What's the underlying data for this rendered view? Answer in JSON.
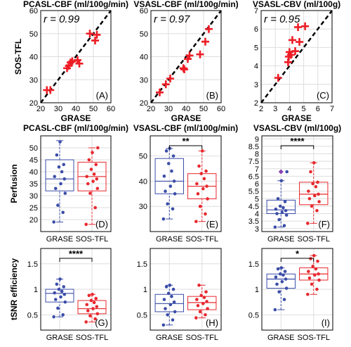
{
  "chart_data": [
    {
      "id": "A",
      "type": "scatter",
      "title": "PCASL-CBF (ml/100g/min)",
      "xlabel": "GRASE",
      "ylabel": "SOS-TFL",
      "xlim": [
        20,
        60
      ],
      "ylim": [
        20,
        60
      ],
      "xticks": [
        "20",
        "30",
        "40",
        "50",
        "60"
      ],
      "yticks": [
        "20",
        "30",
        "40",
        "50",
        "60"
      ],
      "r_label": "r = 0.99",
      "panel_label": "(A)",
      "grid": true,
      "fit_line": [
        [
          20,
          20
        ],
        [
          60,
          60
        ]
      ],
      "x": [
        23.5,
        25.5,
        35,
        36,
        37,
        38,
        41,
        42,
        48,
        51,
        52
      ],
      "y": [
        25.5,
        25.5,
        35,
        36,
        37.5,
        38,
        38.5,
        37,
        50,
        47,
        49.5
      ]
    },
    {
      "id": "B",
      "type": "scatter",
      "title": "VSASL-CBF (ml/100g/min)",
      "xlabel": "GRASE",
      "ylabel": "",
      "xlim": [
        20,
        60
      ],
      "ylim": [
        20,
        60
      ],
      "xticks": [
        "20",
        "30",
        "40",
        "50",
        "60"
      ],
      "yticks": [
        "20",
        "30",
        "40",
        "50",
        "60"
      ],
      "r_label": "r = 0.97",
      "panel_label": "(B)",
      "grid": true,
      "fit_line": [
        [
          20,
          20
        ],
        [
          60,
          60
        ]
      ],
      "x": [
        25,
        28.5,
        31,
        38.5,
        39,
        41,
        42,
        48,
        51,
        53
      ],
      "y": [
        24.5,
        28,
        30.5,
        35,
        34.5,
        39,
        40.5,
        41,
        46.5,
        52
      ]
    },
    {
      "id": "C",
      "type": "scatter",
      "title": "VSASL-CBV (ml/100g)",
      "xlabel": "GRASE",
      "ylabel": "",
      "xlim": [
        2,
        7
      ],
      "ylim": [
        2,
        7
      ],
      "xticks": [
        "2",
        "3",
        "4",
        "5",
        "6",
        "7"
      ],
      "yticks": [
        "2",
        "3",
        "4",
        "5",
        "6",
        "7"
      ],
      "r_label": "r = 0.95",
      "panel_label": "(C)",
      "grid": true,
      "fit_line": [
        [
          2,
          2
        ],
        [
          7,
          7
        ]
      ],
      "x": [
        3.2,
        3.9,
        3.95,
        4.0,
        4.1,
        4.2,
        4.4,
        4.6,
        4.7,
        5.1
      ],
      "y": [
        3.35,
        4.2,
        4.5,
        4.75,
        4.6,
        5.4,
        4.8,
        6.1,
        5.3,
        6.15
      ]
    },
    {
      "id": "D",
      "type": "boxplot",
      "title": "PCASL-CBF (ml/100g/min)",
      "ylabel": "Perfusion",
      "categories": [
        "GRASE",
        "SOS-TFL"
      ],
      "ylim": [
        15,
        55
      ],
      "yticks": [
        "20",
        "25",
        "30",
        "35",
        "40",
        "45",
        "50"
      ],
      "panel_label": "(D)",
      "significance": "",
      "grid": true,
      "series": [
        {
          "name": "GRASE",
          "q1": 32,
          "median": 37,
          "q3": 45,
          "whisker_low": 19,
          "whisker_high": 53,
          "points": [
            19,
            23,
            26,
            31,
            33,
            35,
            37,
            38,
            40,
            42,
            43,
            47,
            52.5
          ]
        },
        {
          "name": "SOS-TFL",
          "q1": 32,
          "median": 38,
          "q3": 44,
          "whisker_low": 18,
          "whisker_high": 50,
          "points": [
            18,
            25,
            31,
            33,
            35,
            36,
            37,
            38,
            39,
            41,
            43,
            45,
            48,
            50
          ]
        }
      ]
    },
    {
      "id": "E",
      "type": "boxplot",
      "title": "VSASL-CBF (ml/100g/min)",
      "ylabel": "",
      "categories": [
        "GRASE",
        "SOS-TFL"
      ],
      "ylim": [
        20,
        58
      ],
      "yticks": [
        "30",
        "40",
        "50"
      ],
      "panel_label": "(E)",
      "significance": "**",
      "grid": true,
      "series": [
        {
          "name": "GRASE",
          "q1": 35,
          "median": 40,
          "q3": 49,
          "whisker_low": 25,
          "whisker_high": 53,
          "points": [
            25,
            29,
            31,
            35,
            36,
            38,
            40,
            42,
            44,
            47,
            50,
            52,
            53
          ]
        },
        {
          "name": "SOS-TFL",
          "q1": 33,
          "median": 38,
          "q3": 43,
          "whisker_low": 24,
          "whisker_high": 52,
          "points": [
            24,
            27,
            30,
            33,
            35,
            37,
            38,
            39,
            41,
            43,
            44,
            46,
            52
          ]
        }
      ]
    },
    {
      "id": "F",
      "type": "boxplot",
      "title": "VSASL-CBV (ml/100g)",
      "ylabel": "",
      "categories": [
        "GRASE",
        "SOS-TFL"
      ],
      "ylim": [
        2.8,
        9.2
      ],
      "yticks": [
        "3",
        "3.5",
        "4",
        "4.5",
        "5",
        "5.5",
        "6",
        "6.5",
        "7",
        "7.5",
        "8",
        "8.5",
        "9"
      ],
      "panel_label": "(F)",
      "significance": "****",
      "grid": true,
      "series": [
        {
          "name": "GRASE",
          "q1": 4.0,
          "median": 4.25,
          "q3": 4.9,
          "whisker_low": 3.1,
          "whisker_high": 6.2,
          "points": [
            3.1,
            3.2,
            3.6,
            3.9,
            4.0,
            4.1,
            4.2,
            4.3,
            4.4,
            4.5,
            4.8,
            5.0,
            6.2,
            6.8
          ]
        },
        {
          "name": "SOS-TFL",
          "q1": 4.6,
          "median": 5.3,
          "q3": 6.1,
          "whisker_low": 3.35,
          "whisker_high": 7.4,
          "points": [
            3.35,
            4.2,
            4.5,
            4.8,
            5.0,
            5.2,
            5.3,
            5.5,
            5.8,
            6.0,
            6.1,
            6.8,
            7.4
          ]
        }
      ]
    },
    {
      "id": "G",
      "type": "boxplot",
      "title": "",
      "ylabel": "tSNR efficiency",
      "categories": [
        "GRASE",
        "SOS-TFL"
      ],
      "ylim": [
        0.2,
        1.8
      ],
      "yticks": [
        "0.5",
        "1",
        "1.5"
      ],
      "panel_label": "(G)",
      "significance": "****",
      "grid": true,
      "series": [
        {
          "name": "GRASE",
          "q1": 0.75,
          "median": 0.92,
          "q3": 1.0,
          "whisker_low": 0.46,
          "whisker_high": 1.2,
          "points": [
            0.46,
            0.5,
            0.63,
            0.75,
            0.8,
            0.85,
            0.9,
            0.93,
            0.96,
            1.0,
            1.05,
            1.1,
            1.2
          ]
        },
        {
          "name": "SOS-TFL",
          "q1": 0.52,
          "median": 0.62,
          "q3": 0.78,
          "whisker_low": 0.36,
          "whisker_high": 0.9,
          "points": [
            0.36,
            0.42,
            0.48,
            0.52,
            0.58,
            0.62,
            0.66,
            0.7,
            0.74,
            0.78,
            0.82,
            0.88,
            0.9
          ]
        }
      ]
    },
    {
      "id": "H",
      "type": "boxplot",
      "title": "",
      "ylabel": "",
      "categories": [
        "GRASE",
        "SOS-TFL"
      ],
      "ylim": [
        0.2,
        1.8
      ],
      "yticks": [
        "0.5",
        "1",
        "1.5"
      ],
      "panel_label": "(H)",
      "significance": "",
      "grid": true,
      "series": [
        {
          "name": "GRASE",
          "q1": 0.56,
          "median": 0.72,
          "q3": 0.9,
          "whisker_low": 0.3,
          "whisker_high": 1.08,
          "points": [
            0.3,
            0.4,
            0.5,
            0.56,
            0.62,
            0.7,
            0.75,
            0.8,
            0.86,
            0.92,
            1.0,
            1.05,
            1.08
          ]
        },
        {
          "name": "SOS-TFL",
          "q1": 0.6,
          "median": 0.74,
          "q3": 0.86,
          "whisker_low": 0.44,
          "whisker_high": 1.08,
          "points": [
            0.44,
            0.5,
            0.56,
            0.62,
            0.68,
            0.72,
            0.76,
            0.8,
            0.84,
            0.88,
            0.95,
            1.08
          ]
        }
      ]
    },
    {
      "id": "I",
      "type": "boxplot",
      "title": "",
      "ylabel": "",
      "categories": [
        "GRASE",
        "SOS-TFL"
      ],
      "ylim": [
        0.2,
        1.8
      ],
      "yticks": [
        "0.5",
        "1",
        "1.5"
      ],
      "panel_label": "(I)",
      "significance": "*",
      "grid": true,
      "series": [
        {
          "name": "GRASE",
          "q1": 1.02,
          "median": 1.2,
          "q3": 1.3,
          "whisker_low": 0.6,
          "whisker_high": 1.42,
          "points": [
            0.6,
            0.8,
            0.95,
            1.02,
            1.1,
            1.15,
            1.2,
            1.24,
            1.28,
            1.3,
            1.35,
            1.4,
            1.42
          ]
        },
        {
          "name": "SOS-TFL",
          "q1": 1.18,
          "median": 1.3,
          "q3": 1.42,
          "whisker_low": 0.9,
          "whisker_high": 1.66,
          "points": [
            0.9,
            1.0,
            1.1,
            1.18,
            1.22,
            1.28,
            1.3,
            1.35,
            1.4,
            1.45,
            1.55,
            1.6,
            1.66
          ]
        }
      ]
    }
  ],
  "colors": {
    "grase": "#3b4da8",
    "sostfl": "#e8282e",
    "marker": "#ee1c25",
    "fit": "#000000",
    "grid": "#dedede"
  }
}
